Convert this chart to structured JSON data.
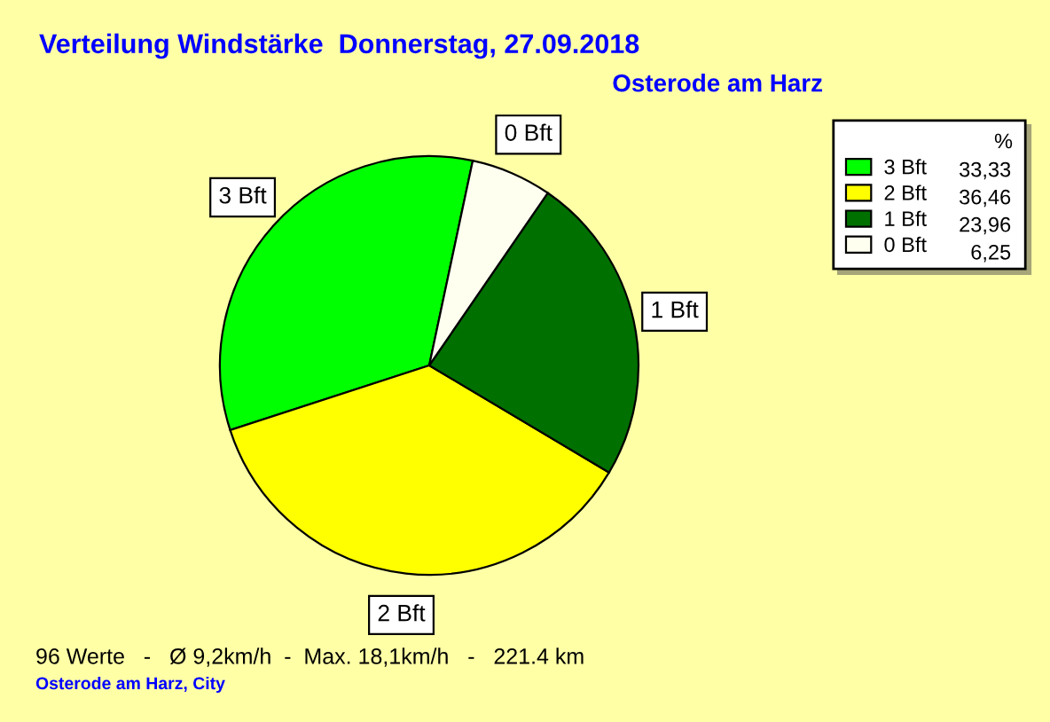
{
  "chart_data": {
    "type": "pie",
    "title": "Verteilung Windstärke  Donnerstag, 27.09.2018",
    "subtitle": "Osterode am Harz",
    "categories": [
      "3 Bft",
      "2 Bft",
      "1 Bft",
      "0 Bft"
    ],
    "values": [
      33.33,
      36.46,
      23.96,
      6.25
    ],
    "colors": [
      "#00ff00",
      "#ffff00",
      "#007000",
      "#fffff0"
    ],
    "value_labels": [
      "33,33",
      "36,46",
      "23,96",
      "6,25"
    ],
    "legend_title": "%",
    "legend": "top right",
    "annotations": [
      "96 Werte   -   Ø 9,2km/h  -  Max. 18,1km/h   -   221.4 km",
      "Osterode am Harz, City"
    ]
  }
}
